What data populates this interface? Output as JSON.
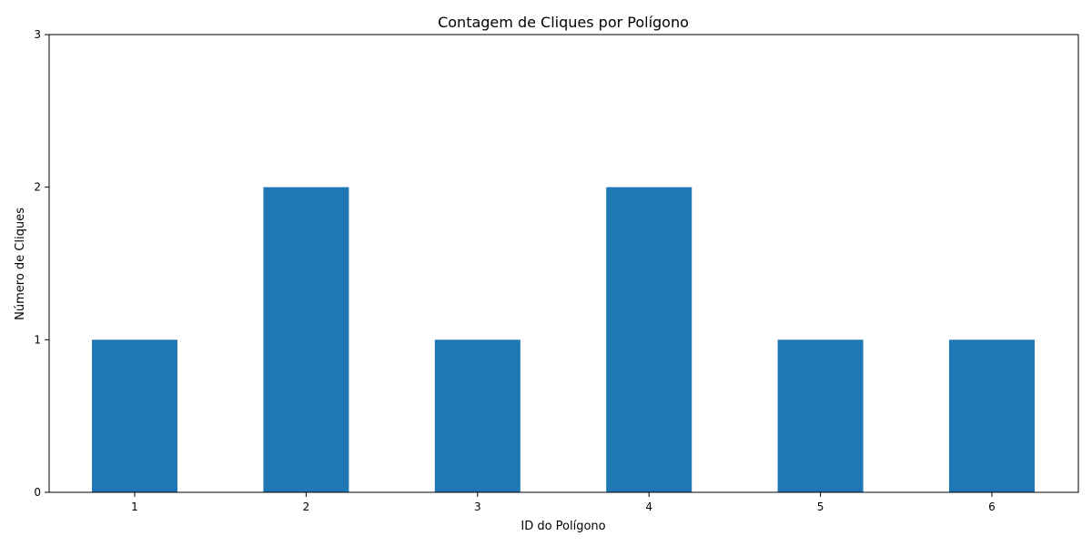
{
  "chart_data": {
    "type": "bar",
    "title": "Contagem de Cliques por Polígono",
    "xlabel": "ID do Polígono",
    "ylabel": "Número de Cliques",
    "categories": [
      "1",
      "2",
      "3",
      "4",
      "5",
      "6"
    ],
    "values": [
      1,
      2,
      1,
      2,
      1,
      1
    ],
    "ylim": [
      0,
      3
    ],
    "yticks": [
      "0",
      "1",
      "2",
      "3"
    ],
    "grid": false,
    "bar_color": "#1f77b4"
  }
}
